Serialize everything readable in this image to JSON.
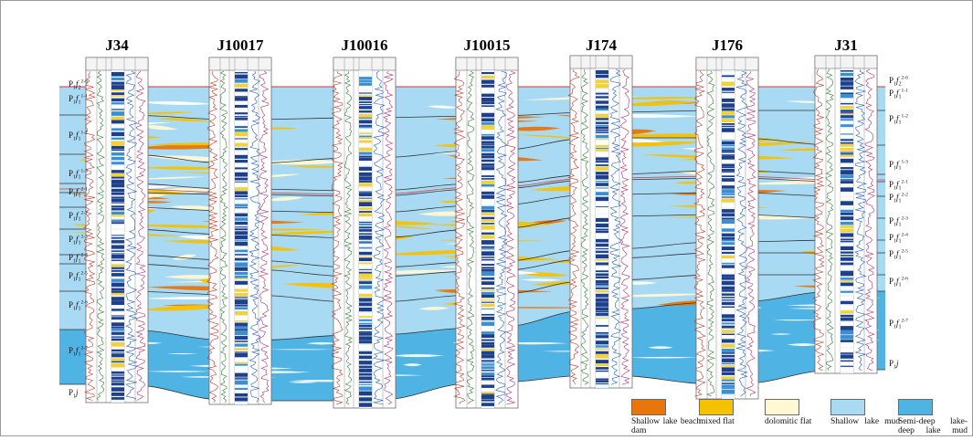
{
  "wells": [
    "J34",
    "J10017",
    "J10016",
    "J10015",
    "J174",
    "J176",
    "J31"
  ],
  "left_labels": [
    {
      "base": "P",
      "sub1": "1",
      "italic": "f",
      "sub2": "2",
      "sup": "2-6"
    },
    {
      "base": "P",
      "sub1": "1",
      "italic": "f",
      "sub2": "1",
      "sup": "1-1"
    },
    {
      "base": "P",
      "sub1": "1",
      "italic": "f",
      "sub2": "1",
      "sup": "1-2"
    },
    {
      "base": "P",
      "sub1": "1",
      "italic": "f",
      "sub2": "1",
      "sup": "1-3"
    },
    {
      "base": "P",
      "sub1": "1",
      "italic": "f",
      "sub2": "1",
      "sup": "2-1"
    },
    {
      "base": "P",
      "sub1": "1",
      "italic": "f",
      "sub2": "1",
      "sup": "2-2"
    },
    {
      "base": "P",
      "sub1": "1",
      "italic": "f",
      "sub2": "1",
      "sup": "2-3"
    },
    {
      "base": "P",
      "sub1": "1",
      "italic": "f",
      "sub2": "1",
      "sup": "2-4"
    },
    {
      "base": "P",
      "sub1": "1",
      "italic": "f",
      "sub2": "1",
      "sup": "2-5"
    },
    {
      "base": "P",
      "sub1": "1",
      "italic": "f",
      "sub2": "1",
      "sup": "2-6"
    },
    {
      "base": "P",
      "sub1": "1",
      "italic": "f",
      "sub2": "1",
      "sup": "2-7"
    },
    {
      "base": "P",
      "sub1": "1",
      "italic": "j",
      "sub2": "",
      "sup": ""
    }
  ],
  "right_labels": [
    {
      "base": "P",
      "sub1": "1",
      "italic": "f",
      "sub2": "2",
      "sup": "2-6"
    },
    {
      "base": "P",
      "sub1": "1",
      "italic": "f",
      "sub2": "1",
      "sup": "1-1"
    },
    {
      "base": "P",
      "sub1": "1",
      "italic": "f",
      "sub2": "1",
      "sup": "1-2"
    },
    {
      "base": "P",
      "sub1": "1",
      "italic": "f",
      "sub2": "1",
      "sup": "1-3"
    },
    {
      "base": "P",
      "sub1": "1",
      "italic": "f",
      "sub2": "1",
      "sup": "2-1"
    },
    {
      "base": "P",
      "sub1": "1",
      "italic": "f",
      "sub2": "1",
      "sup": "2-2"
    },
    {
      "base": "P",
      "sub1": "1",
      "italic": "f",
      "sub2": "1",
      "sup": "2-3"
    },
    {
      "base": "P",
      "sub1": "1",
      "italic": "f",
      "sub2": "1",
      "sup": "2-4"
    },
    {
      "base": "P",
      "sub1": "1",
      "italic": "f",
      "sub2": "1",
      "sup": "2-5"
    },
    {
      "base": "P",
      "sub1": "1",
      "italic": "f",
      "sub2": "1",
      "sup": "2-6"
    },
    {
      "base": "P",
      "sub1": "1",
      "italic": "f",
      "sub2": "1",
      "sup": "2-7"
    },
    {
      "base": "P",
      "sub1": "1",
      "italic": "j",
      "sub2": "",
      "sup": ""
    }
  ],
  "legend": [
    {
      "label": "Shallow lake beach dam",
      "color": "#E8760A"
    },
    {
      "label": "mixed flat",
      "color": "#F6C200"
    },
    {
      "label": "dolomitic flat",
      "color": "#FFF8D2"
    },
    {
      "label": "Shallow lake mud",
      "color": "#A9DAF4"
    },
    {
      "label": "Semi-deep lake-deep lake mud",
      "color": "#4FB3E3"
    }
  ],
  "colors": {
    "shallow_lake_mud": "#A9DAF4",
    "semi_deep_lake_mud": "#4FB3E3",
    "mixed_flat": "#F6C200",
    "beach_dam": "#E8760A",
    "dolomitic_flat": "#FFF8D2",
    "log_core": "#1E3F8A",
    "layer_line": "#333333",
    "top_line": "#D03A3A"
  }
}
